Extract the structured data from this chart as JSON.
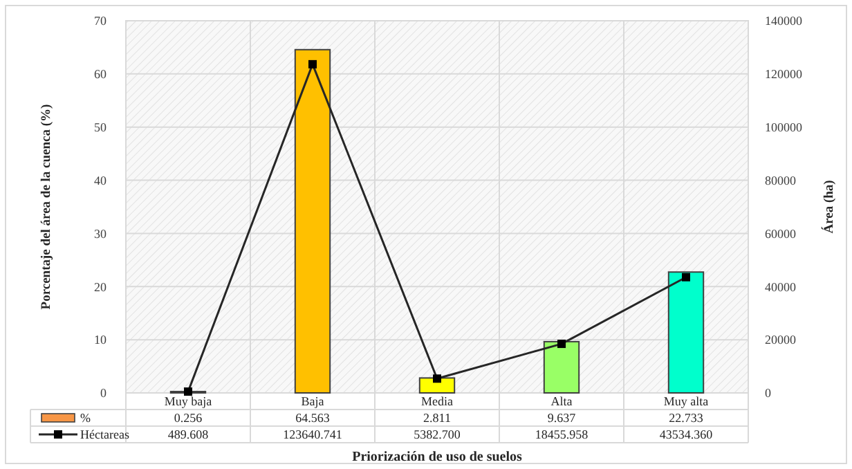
{
  "chart_data": {
    "type": "bar",
    "xlabel": "Priorización de uso de suelos",
    "ylabel": "Porcentaje del área de la cuenca (%)",
    "y2label": "Área (ha)",
    "categories": [
      "Muy baja",
      "Baja",
      "Media",
      "Alta",
      "Muy alta"
    ],
    "series": [
      {
        "name": "%",
        "color": "#f79646",
        "colors": [
          "#ffffff",
          "#ffc000",
          "#ffff00",
          "#99ff66",
          "#00ffcc"
        ],
        "values": [
          0.256,
          64.563,
          2.811,
          9.637,
          22.733
        ],
        "value_labels": [
          "0.256",
          "64.563",
          "2.811",
          "9.637",
          "22.733"
        ]
      },
      {
        "name": "Héctareas",
        "type": "line",
        "axis": "y2",
        "color": "#262626",
        "marker": "square",
        "values": [
          489.608,
          123640.741,
          5382.7,
          18455.958,
          43534.36
        ],
        "value_labels": [
          "489.608",
          "123640.741",
          "5382.700",
          "18455.958",
          "43534.360"
        ]
      }
    ],
    "ylim": [
      0,
      70
    ],
    "yticks": [
      0,
      10,
      20,
      30,
      40,
      50,
      60,
      70
    ],
    "y2lim": [
      0,
      140000
    ],
    "y2ticks": [
      0,
      20000,
      40000,
      60000,
      80000,
      100000,
      120000,
      140000
    ],
    "grid": true,
    "legend": "bottom"
  }
}
